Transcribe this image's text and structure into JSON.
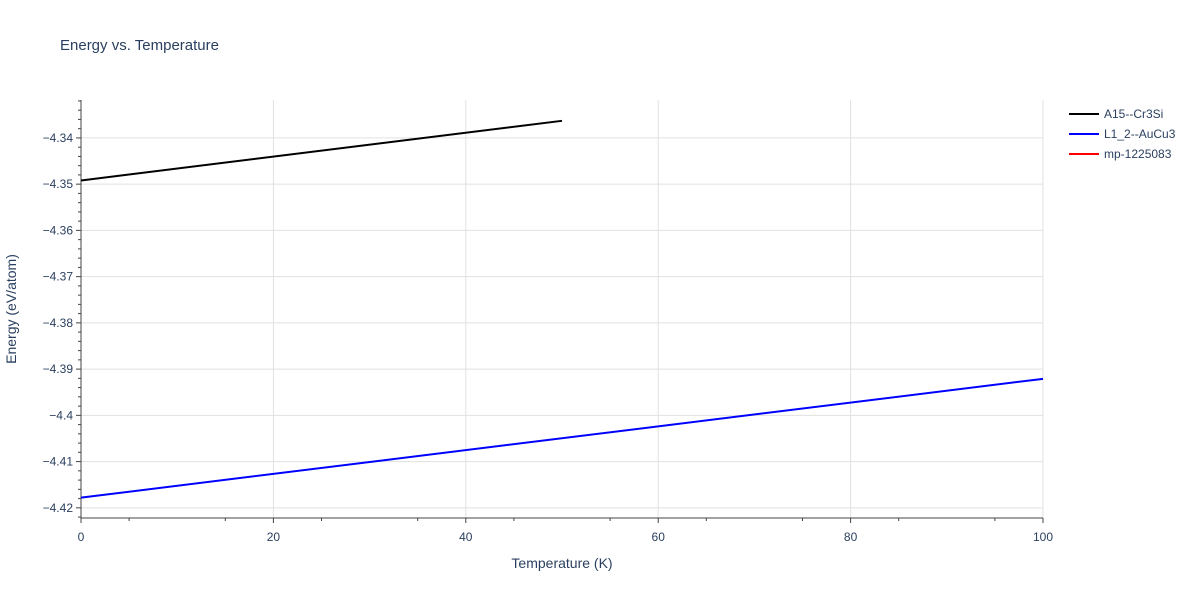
{
  "chart_data": {
    "type": "line",
    "title": "Energy vs. Temperature",
    "xlabel": "Temperature (K)",
    "ylabel": "Energy (eV/atom)",
    "xlim": [
      0,
      100
    ],
    "ylim": [
      -4.4222,
      -4.3318
    ],
    "xticks": [
      0,
      20,
      40,
      60,
      80,
      100
    ],
    "xtick_labels": [
      "0",
      "20",
      "40",
      "60",
      "80",
      "100"
    ],
    "yticks": [
      -4.42,
      -4.41,
      -4.4,
      -4.39,
      -4.38,
      -4.37,
      -4.36,
      -4.35,
      -4.34
    ],
    "ytick_labels": [
      "−4.42",
      "−4.41",
      "−4.4",
      "−4.39",
      "−4.38",
      "−4.37",
      "−4.36",
      "−4.35",
      "−4.34"
    ],
    "grid": true,
    "legend_position": "top-right",
    "series": [
      {
        "name": "A15--Cr3Si",
        "color": "#000000",
        "x": [
          0,
          50
        ],
        "y": [
          -4.3492,
          -4.3363
        ]
      },
      {
        "name": "L1_2--AuCu3",
        "color": "#0000ff",
        "x": [
          0,
          100
        ],
        "y": [
          -4.4178,
          -4.3921
        ]
      },
      {
        "name": "mp-1225083",
        "color": "#ff0000",
        "x": [],
        "y": []
      }
    ]
  }
}
